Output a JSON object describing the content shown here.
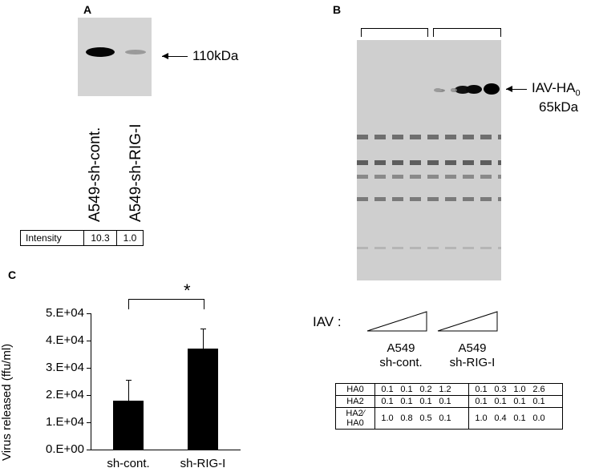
{
  "panelA": {
    "label": "A",
    "marker": "110kDa",
    "lanes": [
      "A549-sh-cont.",
      "A549-sh-RIG-I"
    ],
    "table": {
      "header": "Intensity",
      "values": [
        "10.3",
        "1.0"
      ]
    }
  },
  "panelB": {
    "label": "B",
    "marker_line1": "IAV-HA",
    "marker_sub": "0",
    "marker_line2": "65kDa",
    "iav_label": "IAV :",
    "groups": [
      {
        "line1": "A549",
        "line2": "sh-cont."
      },
      {
        "line1": "A549",
        "line2": "sh-RIG-I"
      }
    ],
    "table": {
      "rows": [
        {
          "label": "HA0",
          "g1": [
            "0.1",
            "0.1",
            "0.2",
            "1.2"
          ],
          "g2": [
            "0.1",
            "0.3",
            "1.0",
            "2.6"
          ]
        },
        {
          "label": "HA2",
          "g1": [
            "0.1",
            "0.1",
            "0.1",
            "0.1"
          ],
          "g2": [
            "0.1",
            "0.1",
            "0.1",
            "0.1"
          ]
        },
        {
          "label": "HA2⁄\nHA0",
          "g1": [
            "1.0",
            "0.8",
            "0.5",
            "0.1"
          ],
          "g2": [
            "1.0",
            "0.4",
            "0.1",
            "0.0"
          ]
        }
      ]
    }
  },
  "panelC": {
    "label": "C",
    "significance": "*",
    "chart_data": {
      "type": "bar",
      "categories": [
        "sh-cont.",
        "sh-RIG-I"
      ],
      "values": [
        18000,
        37000
      ],
      "errors": [
        7700,
        7300
      ],
      "ylabel": "Virus released (ffu/ml)",
      "ylim": [
        0,
        50000
      ],
      "yticks": [
        "0.E+00",
        "1.E+04",
        "2.E+04",
        "3.E+04",
        "4.E+04",
        "5.E+04"
      ],
      "grid": false
    }
  }
}
